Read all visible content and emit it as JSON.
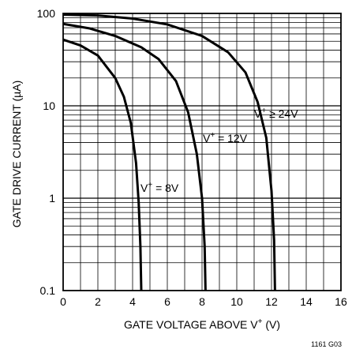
{
  "chart_data": {
    "type": "line",
    "xlabel": {
      "main": "GATE VOLTAGE ABOVE V",
      "sup": "+",
      "tail": " (V)"
    },
    "ylabel": "GATE DRIVE CURRENT (µA)",
    "xlim": [
      0,
      16
    ],
    "ylim": [
      0.1,
      100
    ],
    "y_scale": "log",
    "x_ticks": [
      "0",
      "2",
      "4",
      "6",
      "8",
      "10",
      "12",
      "14",
      "16"
    ],
    "y_ticks": [
      "0.1",
      "1",
      "10",
      "100"
    ],
    "grid": true,
    "series": [
      {
        "name": {
          "pre": "V",
          "sup": "+",
          "rel": " = 8V"
        },
        "x": [
          0,
          1.0,
          2.0,
          3.0,
          3.5,
          3.9,
          4.2,
          4.35,
          4.45,
          4.5
        ],
        "y": [
          52,
          45,
          35,
          20,
          12.5,
          6.5,
          2.4,
          0.9,
          0.3,
          0.1
        ]
      },
      {
        "name": {
          "pre": "V",
          "sup": "+",
          "rel": " = 12V"
        },
        "x": [
          0,
          1.5,
          3.0,
          4.5,
          5.5,
          6.5,
          7.2,
          7.7,
          8.0,
          8.15,
          8.2
        ],
        "y": [
          77,
          69,
          57,
          43,
          32,
          18.5,
          8.5,
          3.0,
          1.0,
          0.3,
          0.1
        ]
      },
      {
        "name": {
          "pre": "V",
          "sup": "+",
          "rel": " ≥ 24V"
        },
        "x": [
          0,
          2.0,
          4.0,
          6.0,
          8.0,
          9.5,
          10.5,
          11.2,
          11.7,
          12.0,
          12.15,
          12.2
        ],
        "y": [
          97,
          95,
          88,
          76,
          57,
          38,
          23,
          11,
          4.5,
          1.2,
          0.35,
          0.1
        ]
      }
    ],
    "code": "1161 G03"
  }
}
